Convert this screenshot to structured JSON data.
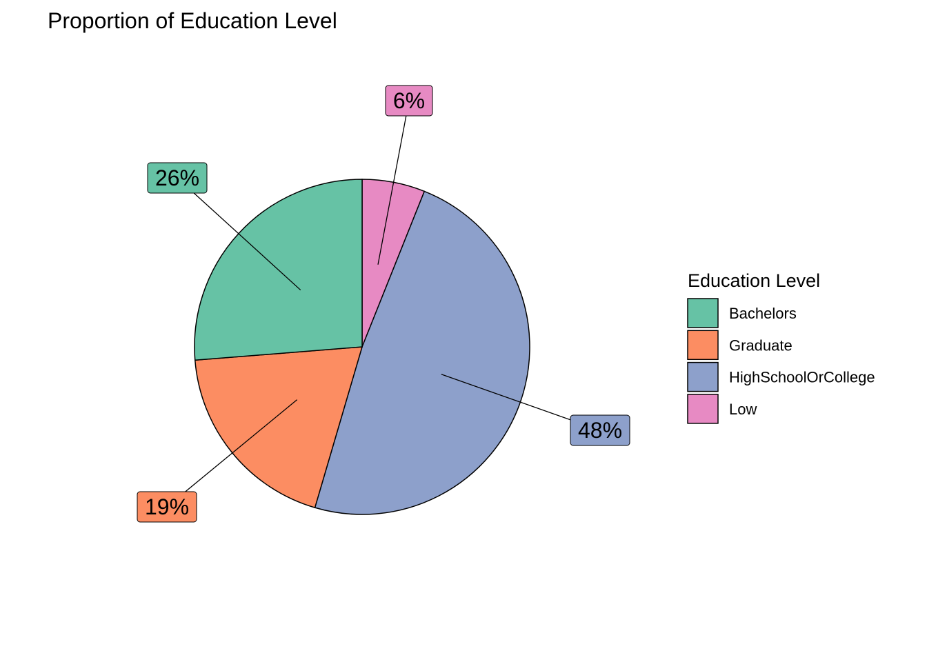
{
  "chart_data": {
    "type": "pie",
    "title": "Proportion of Education Level",
    "legend": {
      "title": "Education Level",
      "position": "right"
    },
    "categories": [
      "Bachelors",
      "Graduate",
      "HighSchoolOrCollege",
      "Low"
    ],
    "values": [
      26,
      19,
      48,
      6
    ],
    "labels": [
      "26%",
      "19%",
      "48%",
      "6%"
    ],
    "colors": [
      "#66c2a5",
      "#fc8d62",
      "#8da0cb",
      "#e78ac3"
    ]
  }
}
